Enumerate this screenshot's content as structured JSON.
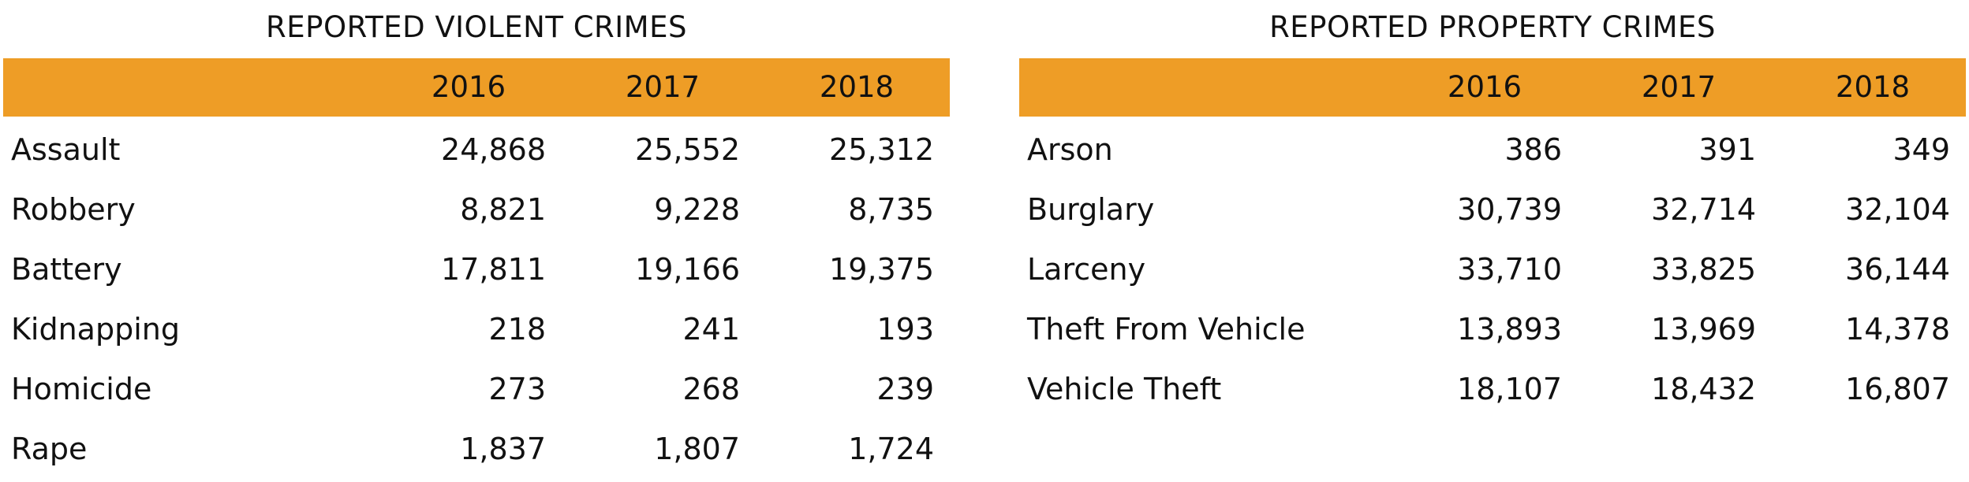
{
  "violent": {
    "title": "REPORTED VIOLENT CRIMES",
    "years": [
      "2016",
      "2017",
      "2018"
    ],
    "rows": [
      {
        "label": "Assault",
        "values": [
          "24,868",
          "25,552",
          "25,312"
        ]
      },
      {
        "label": "Robbery",
        "values": [
          "8,821",
          "9,228",
          "8,735"
        ]
      },
      {
        "label": "Battery",
        "values": [
          "17,811",
          "19,166",
          "19,375"
        ]
      },
      {
        "label": "Kidnapping",
        "values": [
          "218",
          "241",
          "193"
        ]
      },
      {
        "label": "Homicide",
        "values": [
          "273",
          "268",
          "239"
        ]
      },
      {
        "label": "Rape",
        "values": [
          "1,837",
          "1,807",
          "1,724"
        ]
      }
    ]
  },
  "property": {
    "title": "REPORTED PROPERTY CRIMES",
    "years": [
      "2016",
      "2017",
      "2018"
    ],
    "rows": [
      {
        "label": "Arson",
        "values": [
          "386",
          "391",
          "349"
        ]
      },
      {
        "label": "Burglary",
        "values": [
          "30,739",
          "32,714",
          "32,104"
        ]
      },
      {
        "label": "Larceny",
        "values": [
          "33,710",
          "33,825",
          "36,144"
        ]
      },
      {
        "label": "Theft From Vehicle",
        "values": [
          "13,893",
          "13,969",
          "14,378"
        ]
      },
      {
        "label": "Vehicle Theft",
        "values": [
          "18,107",
          "18,432",
          "16,807"
        ]
      }
    ]
  },
  "colors": {
    "header_bar": "#ee9d26",
    "text": "#111111"
  }
}
